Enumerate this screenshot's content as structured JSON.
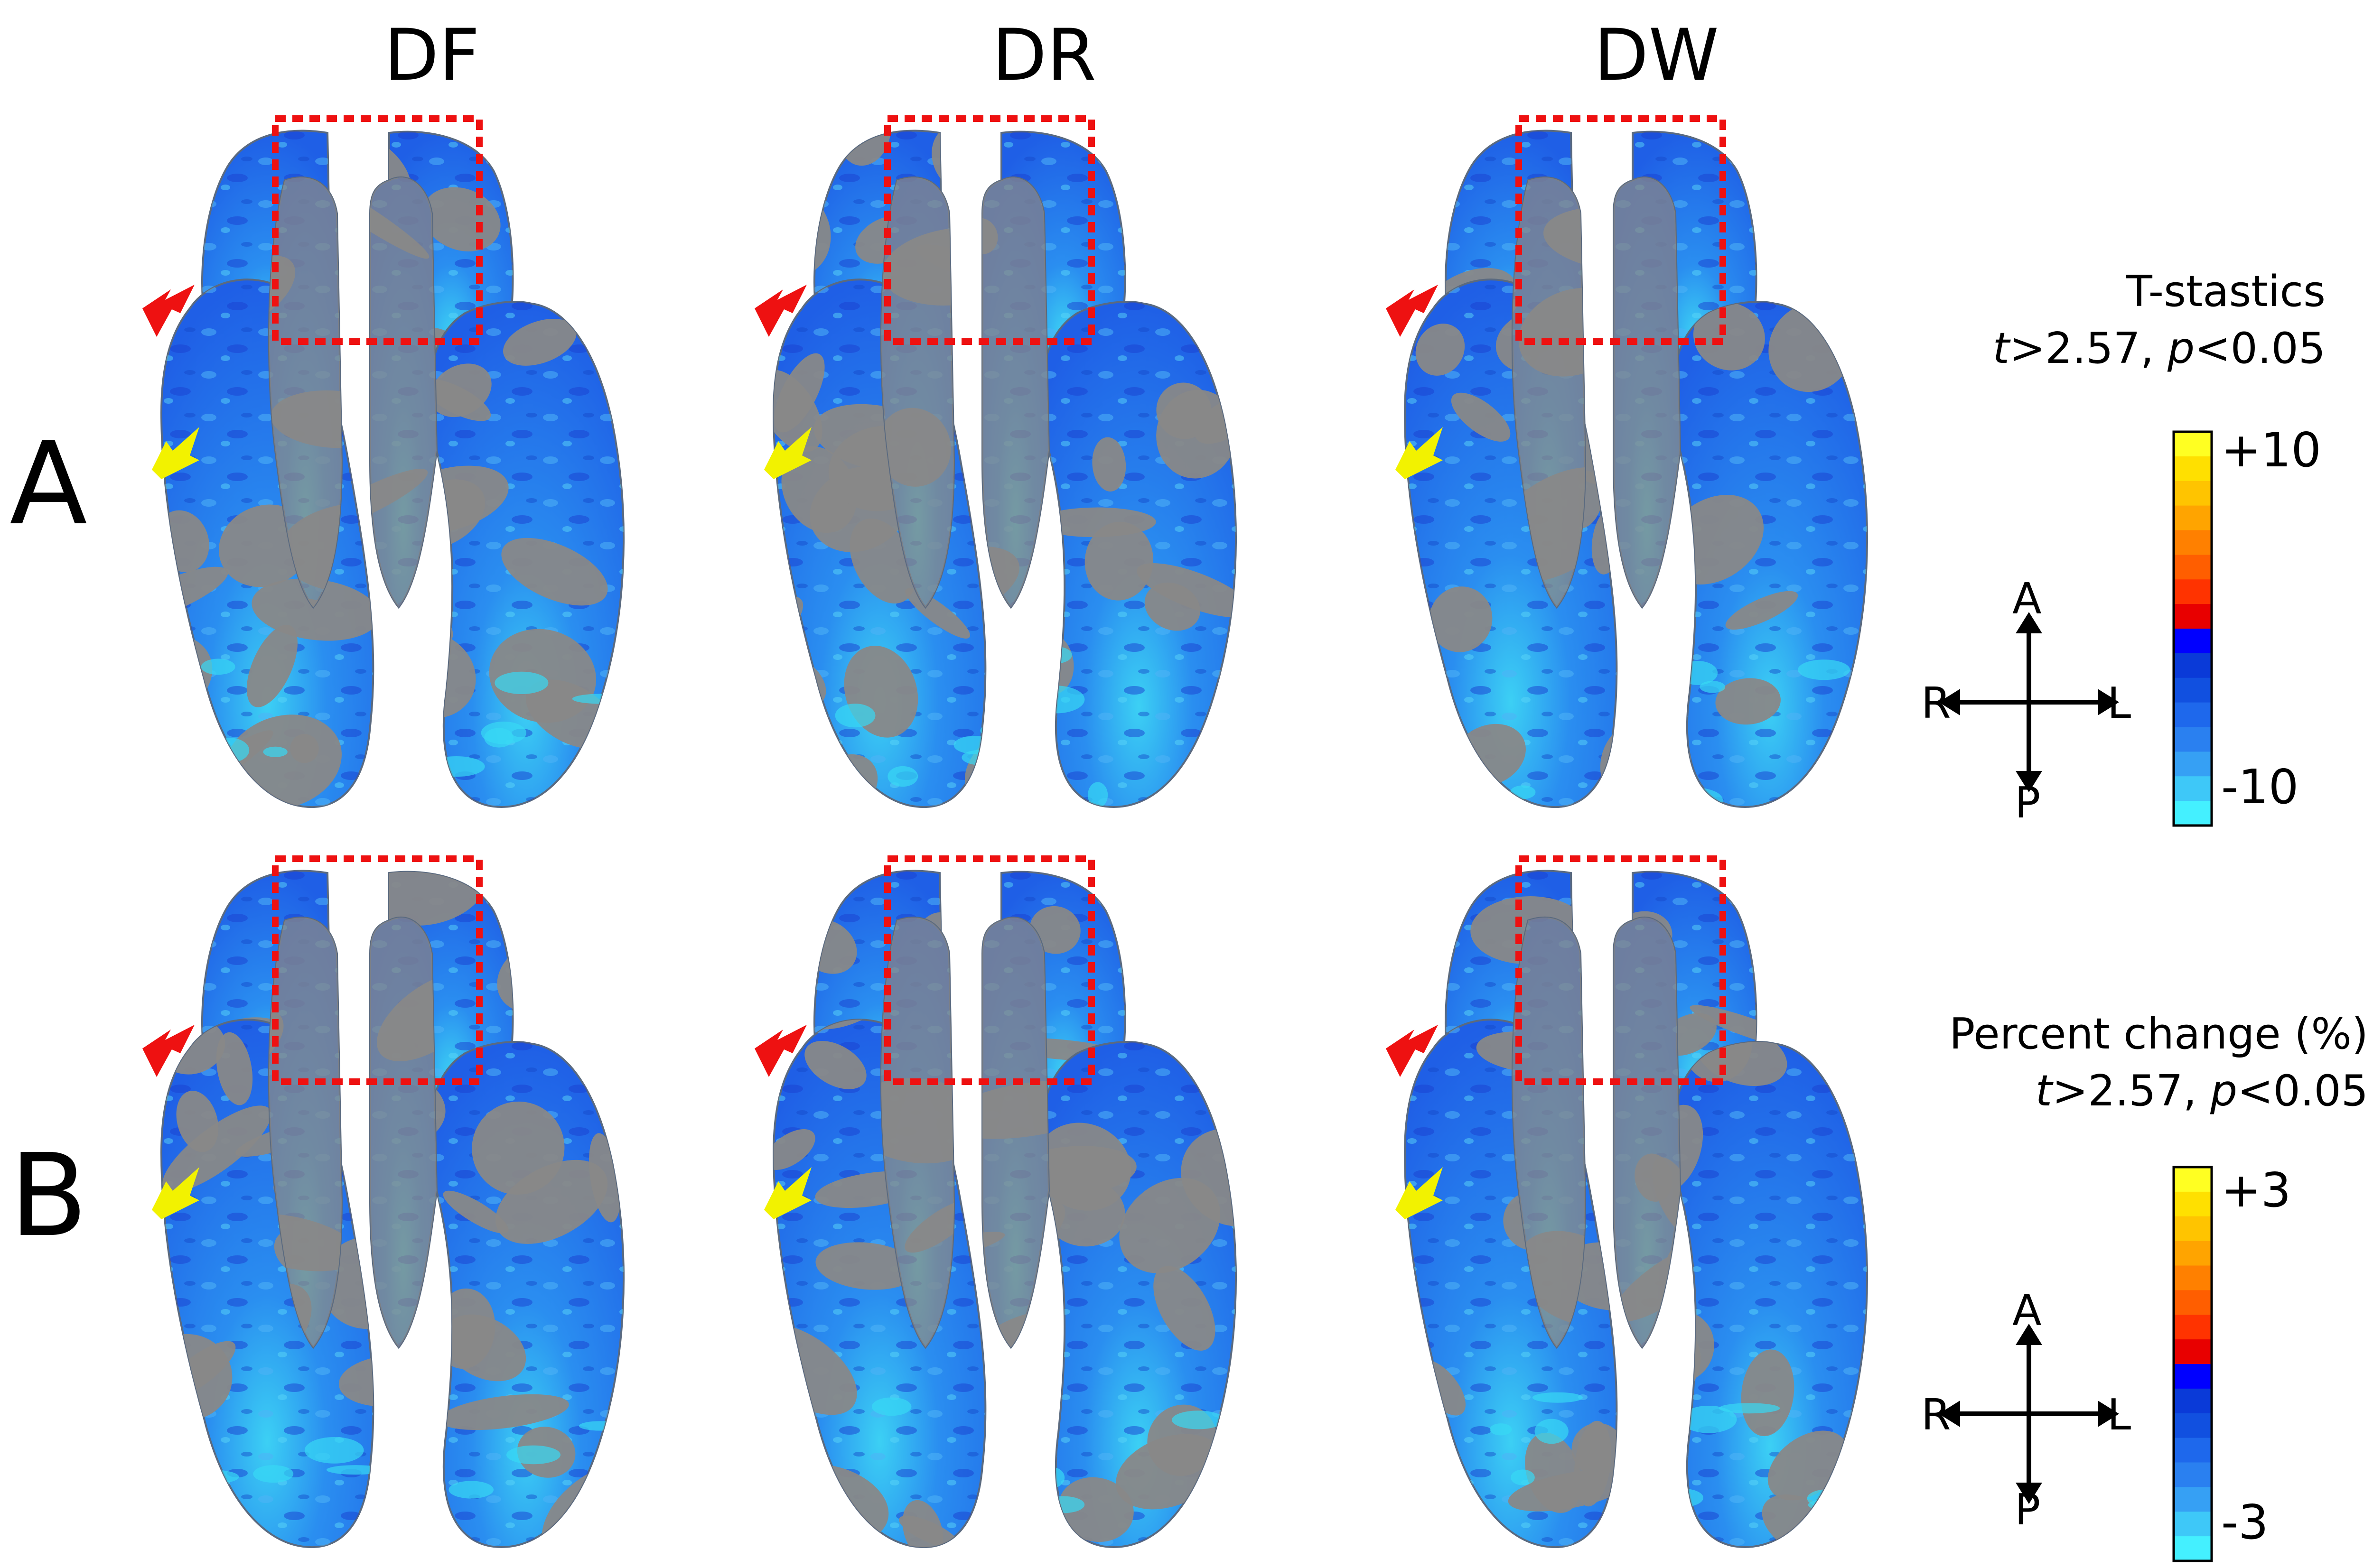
{
  "columns": [
    {
      "label": "DF"
    },
    {
      "label": "DR"
    },
    {
      "label": "DW"
    }
  ],
  "rows": [
    {
      "label": "A",
      "legend": {
        "title_line1": "T-stastics",
        "t_sym": "t",
        "t_text": ">2.57, ",
        "p_sym": "p",
        "p_text": "<0.05",
        "max_label": "+10",
        "min_label": "-10",
        "max": 10,
        "min": -10
      }
    },
    {
      "label": "B",
      "legend": {
        "title_line1": "Percent change (%)",
        "t_sym": "t",
        "t_text": ">2.57, ",
        "p_sym": "p",
        "p_text": "<0.05",
        "max_label": "+3",
        "min_label": "-3",
        "max": 3,
        "min": -3
      }
    }
  ],
  "compass": {
    "anterior": "A",
    "posterior": "P",
    "right": "R",
    "left": "L"
  },
  "colorbar_stops": [
    "#ffff22",
    "#ffe000",
    "#ffc400",
    "#ffa400",
    "#ff8000",
    "#ff5e00",
    "#ff3300",
    "#e80000",
    "#0000ff",
    "#0a3ad8",
    "#1150e0",
    "#1e68ec",
    "#2a80f0",
    "#36a0f4",
    "#3ec8f8",
    "#44f0ff"
  ],
  "colors": {
    "brain_gray": "#888888",
    "activation_blue": "#1f5fe6",
    "activation_cyan": "#37d8f4",
    "roi_box": "#ee1111",
    "arrow_red": "#ee1111",
    "arrow_yellow": "#f2f200"
  }
}
